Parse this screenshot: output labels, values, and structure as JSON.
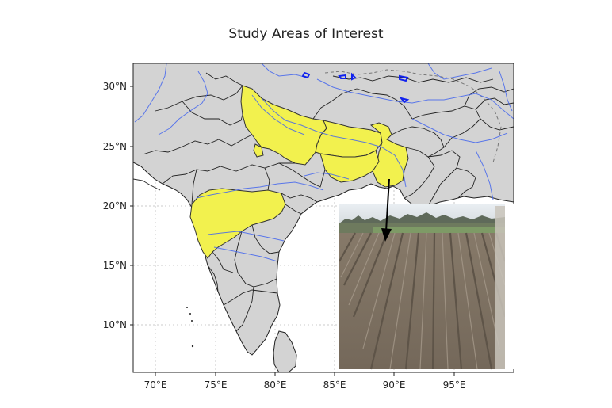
{
  "title": "Study Areas of Interest",
  "lat_ticks": [
    "30°N",
    "25°N",
    "20°N",
    "15°N",
    "10°N"
  ],
  "lon_ticks": [
    "70°E",
    "75°E",
    "80°E",
    "85°E",
    "90°E",
    "95°E"
  ],
  "colors": {
    "land": "#d3d3d3",
    "highlight": "#f2f14e",
    "rivers": "#4466ee",
    "borders": "#222222",
    "sea": "#ffffff"
  },
  "study_areas": [
    "Uttar Pradesh",
    "Bihar",
    "West Bengal",
    "Maharashtra"
  ],
  "inset": {
    "description_icon": "field-photo-icon"
  }
}
